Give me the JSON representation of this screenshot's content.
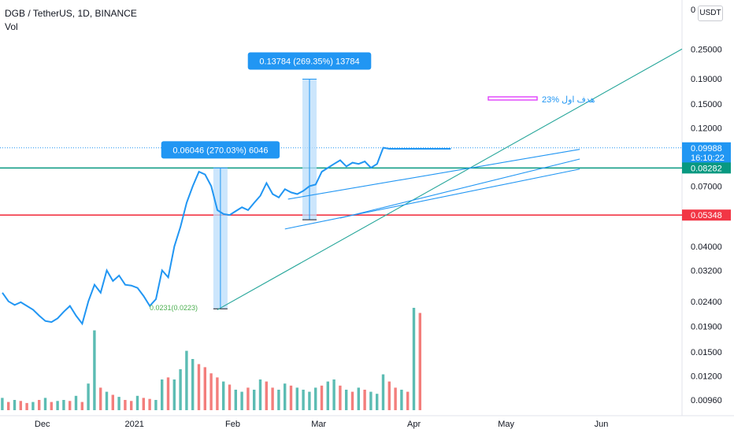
{
  "header": {
    "symbol_line": "DGB / TetherUS, 1D, BINANCE",
    "indicator": "Vol",
    "currency_button": "USDT",
    "top_axis_fragment": "0"
  },
  "colors": {
    "price": "#2196f3",
    "trend_green": "#26a69a",
    "support_green": "#089981",
    "resistance_red": "#f23645",
    "measure_fill": "#bbdefb",
    "measure_label": "#2196f3",
    "vol_up": "#26a69a",
    "vol_down": "#ef5350",
    "target_marker": "#e040fb"
  },
  "chart_data": {
    "type": "line",
    "title": "DGB / TetherUS, 1D, BINANCE",
    "price_axis": {
      "scale": "log",
      "ylim": [
        0.0088,
        0.38
      ],
      "ticks": [
        "0.25000",
        "0.19000",
        "0.15000",
        "0.12000",
        "0.09988",
        "0.08282",
        "0.07000",
        "0.05348",
        "0.04000",
        "0.03200",
        "0.02400",
        "0.01900",
        "0.01500",
        "0.01200",
        "0.00960"
      ]
    },
    "time_axis": {
      "labels": [
        "Dec",
        "2021",
        "Feb",
        "Mar",
        "Apr",
        "May",
        "Jun"
      ],
      "label_days": [
        13,
        43,
        75,
        103,
        134,
        164,
        195
      ]
    },
    "price_series": {
      "name": "DGB / TetherUS",
      "x_days": [
        0,
        2,
        4,
        6,
        8,
        10,
        12,
        14,
        16,
        18,
        20,
        22,
        24,
        26,
        28,
        30,
        32,
        34,
        36,
        38,
        40,
        42,
        44,
        46,
        48,
        50,
        52,
        54,
        56,
        58,
        60,
        62,
        64,
        66,
        68,
        70,
        72,
        74,
        76,
        78,
        80,
        82,
        84,
        86,
        88,
        90,
        92,
        94,
        96,
        98,
        100,
        102,
        104,
        106,
        108,
        110,
        112,
        114,
        116,
        118,
        120,
        122,
        124,
        126,
        128,
        130,
        132,
        134,
        136,
        138,
        140,
        142,
        144,
        146
      ],
      "values": [
        0.026,
        0.024,
        0.0232,
        0.0238,
        0.023,
        0.0222,
        0.021,
        0.02,
        0.0198,
        0.0205,
        0.0218,
        0.023,
        0.021,
        0.0195,
        0.024,
        0.028,
        0.026,
        0.032,
        0.029,
        0.0305,
        0.028,
        0.0278,
        0.0272,
        0.0252,
        0.023,
        0.0245,
        0.032,
        0.03,
        0.04,
        0.048,
        0.06,
        0.07,
        0.08,
        0.078,
        0.07,
        0.056,
        0.054,
        0.0535,
        0.0555,
        0.0575,
        0.056,
        0.06,
        0.064,
        0.072,
        0.065,
        0.063,
        0.068,
        0.066,
        0.065,
        0.067,
        0.07,
        0.071,
        0.08,
        0.083,
        0.086,
        0.089,
        0.084,
        0.087,
        0.086,
        0.088,
        0.083,
        0.086,
        0.1,
        0.099,
        0.099,
        0.099,
        0.099,
        0.099,
        0.099,
        0.099,
        0.099,
        0.099,
        0.099,
        0.099
      ]
    },
    "volume": {
      "x_days": [
        0,
        2,
        4,
        6,
        8,
        10,
        12,
        14,
        16,
        18,
        20,
        22,
        24,
        26,
        28,
        30,
        32,
        34,
        36,
        38,
        40,
        42,
        44,
        46,
        48,
        50,
        52,
        54,
        56,
        58,
        60,
        62,
        64,
        66,
        68,
        70,
        72,
        74,
        76,
        78,
        80,
        82,
        84,
        86,
        88,
        90,
        92,
        94,
        96,
        98,
        100,
        102,
        104,
        106,
        108,
        110,
        112,
        114,
        116,
        118,
        120,
        122,
        124,
        126,
        128,
        130,
        132,
        134,
        136
      ],
      "rel_heights": [
        0.12,
        0.08,
        0.1,
        0.09,
        0.07,
        0.08,
        0.1,
        0.12,
        0.08,
        0.09,
        0.1,
        0.09,
        0.14,
        0.08,
        0.26,
        0.78,
        0.22,
        0.18,
        0.15,
        0.13,
        0.1,
        0.09,
        0.14,
        0.12,
        0.11,
        0.1,
        0.3,
        0.32,
        0.3,
        0.4,
        0.58,
        0.5,
        0.45,
        0.42,
        0.36,
        0.32,
        0.28,
        0.25,
        0.2,
        0.18,
        0.22,
        0.2,
        0.3,
        0.28,
        0.22,
        0.2,
        0.26,
        0.24,
        0.22,
        0.2,
        0.18,
        0.22,
        0.24,
        0.28,
        0.3,
        0.24,
        0.2,
        0.18,
        0.22,
        0.2,
        0.18,
        0.16,
        0.35,
        0.28,
        0.22,
        0.2,
        0.18,
        1.0,
        0.95
      ],
      "up": [
        true,
        false,
        true,
        false,
        false,
        true,
        false,
        true,
        false,
        true,
        true,
        false,
        true,
        false,
        true,
        true,
        false,
        true,
        false,
        true,
        false,
        false,
        true,
        false,
        false,
        true,
        true,
        false,
        true,
        true,
        true,
        true,
        false,
        false,
        false,
        false,
        true,
        false,
        true,
        true,
        false,
        true,
        true,
        false,
        false,
        true,
        true,
        false,
        true,
        true,
        true,
        true,
        false,
        true,
        true,
        false,
        true,
        false,
        true,
        false,
        true,
        true,
        true,
        false,
        false,
        true,
        false,
        true,
        false
      ]
    },
    "lines": [
      {
        "name": "support-line",
        "price": 0.08282,
        "color": "resistance_green"
      },
      {
        "name": "resistance-line",
        "price": 0.05348,
        "color": "red"
      }
    ],
    "measures": [
      {
        "label": "0.06046 (270.03%) 6046",
        "day_x": 71,
        "from": 0.0224,
        "to": 0.0828
      },
      {
        "label": "0.13784 (269.35%) 13784",
        "day_x": 100,
        "from": 0.0512,
        "to": 0.1891
      }
    ],
    "annotations": {
      "target_text": "هدف اول %23",
      "last_price": "0.09988",
      "countdown": "16:10:22",
      "support_price": "0.08282",
      "resistance_price": "0.05348",
      "small_label": "0.0231(0.0223)"
    }
  }
}
